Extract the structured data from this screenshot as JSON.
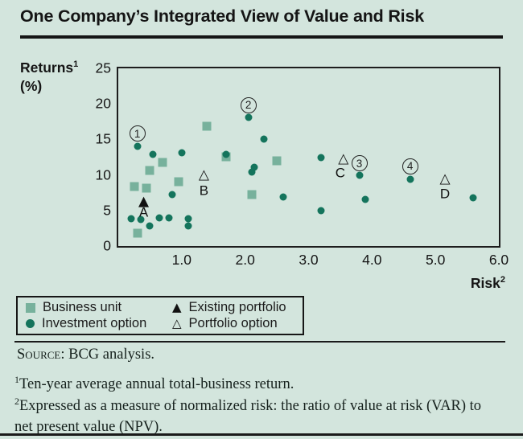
{
  "header": {
    "title": "One Company’s Integrated View of Value and Risk"
  },
  "axes": {
    "y_label": "Returns",
    "y_sup": "1",
    "y_unit": "(%)",
    "x_label": "Risk",
    "x_sup": "2"
  },
  "symbols": {
    "triangle_filled": "▲",
    "triangle_open": "△"
  },
  "colors": {
    "background": "#d3e5dd",
    "business_unit": "#77b19c",
    "investment_option": "#14745c",
    "ink": "#1a1a1a"
  },
  "legend": {
    "items": [
      {
        "marker": "square",
        "label": "Business unit"
      },
      {
        "marker": "triangle-filled",
        "label": "Existing portfolio"
      },
      {
        "marker": "circle",
        "label": "Investment option"
      },
      {
        "marker": "triangle-open",
        "label": "Portfolio option"
      }
    ]
  },
  "footer": {
    "source_label": "Source:",
    "source_text": "BCG analysis.",
    "footnotes": [
      {
        "sup": "1",
        "text": "Ten-year average annual total-business return."
      },
      {
        "sup": "2",
        "text": "Expressed as a measure of normalized risk: the ratio of value at risk (VAR) to net present value (NPV)."
      }
    ]
  },
  "chart_data": {
    "type": "scatter",
    "title": "One Company's Integrated View of Value and Risk",
    "xlabel": "Risk",
    "ylabel": "Returns (%)",
    "xlim": [
      0,
      6
    ],
    "ylim": [
      0,
      25
    ],
    "grid": false,
    "legend_position": "bottom-left box",
    "x_ticks": [
      {
        "value": 1,
        "label": "1.0"
      },
      {
        "value": 2,
        "label": "2.0"
      },
      {
        "value": 3,
        "label": "3.0"
      },
      {
        "value": 4,
        "label": "4.0"
      },
      {
        "value": 5,
        "label": "5.0"
      },
      {
        "value": 6,
        "label": "6.0"
      }
    ],
    "y_ticks": [
      {
        "value": 0,
        "label": "0"
      },
      {
        "value": 5,
        "label": "5"
      },
      {
        "value": 10,
        "label": "10"
      },
      {
        "value": 15,
        "label": "15"
      },
      {
        "value": 20,
        "label": "20"
      },
      {
        "value": 25,
        "label": "25"
      }
    ],
    "series": [
      {
        "name": "Business unit",
        "marker": "square",
        "color": "#77b19c",
        "points": [
          [
            0.25,
            8.4
          ],
          [
            0.45,
            8.2
          ],
          [
            0.5,
            10.6
          ],
          [
            0.7,
            11.8
          ],
          [
            0.95,
            9.1
          ],
          [
            0.3,
            1.8
          ],
          [
            1.4,
            16.8
          ],
          [
            1.7,
            12.6
          ],
          [
            2.1,
            7.2
          ],
          [
            2.5,
            12.0
          ]
        ]
      },
      {
        "name": "Investment option",
        "marker": "circle",
        "color": "#14745c",
        "points": [
          [
            0.3,
            14.0
          ],
          [
            0.55,
            12.9
          ],
          [
            1.0,
            13.1
          ],
          [
            0.85,
            7.2
          ],
          [
            0.2,
            3.9
          ],
          [
            0.35,
            3.7
          ],
          [
            0.5,
            2.8
          ],
          [
            0.65,
            4.0
          ],
          [
            0.8,
            4.0
          ],
          [
            1.1,
            3.9
          ],
          [
            1.1,
            2.8
          ],
          [
            1.7,
            12.9
          ],
          [
            2.05,
            18.1
          ],
          [
            2.1,
            10.4
          ],
          [
            2.15,
            11.1
          ],
          [
            2.3,
            15.1
          ],
          [
            2.6,
            6.9
          ],
          [
            3.2,
            12.4
          ],
          [
            3.2,
            5.0
          ],
          [
            3.8,
            9.9
          ],
          [
            3.9,
            6.6
          ],
          [
            4.6,
            9.4
          ],
          [
            5.6,
            6.8
          ]
        ]
      },
      {
        "name": "Existing portfolio",
        "marker": "triangle-filled",
        "color": "#111111",
        "points": [
          [
            0.4,
            6.2
          ]
        ]
      },
      {
        "name": "Portfolio option",
        "marker": "triangle-open",
        "color": "#111111",
        "points": [
          [
            1.35,
            9.9
          ],
          [
            3.55,
            12.2
          ],
          [
            5.15,
            9.4
          ]
        ]
      }
    ],
    "point_labels": [
      {
        "text": "A",
        "x": 0.4,
        "y": 4.7
      },
      {
        "text": "B",
        "x": 1.35,
        "y": 7.8
      },
      {
        "text": "C",
        "x": 3.5,
        "y": 10.3
      },
      {
        "text": "D",
        "x": 5.15,
        "y": 7.4
      }
    ],
    "circled_numbers": [
      {
        "text": "1",
        "x": 0.3,
        "y": 15.8
      },
      {
        "text": "2",
        "x": 2.05,
        "y": 19.8
      },
      {
        "text": "3",
        "x": 3.8,
        "y": 11.6
      },
      {
        "text": "4",
        "x": 4.6,
        "y": 11.2
      }
    ]
  }
}
